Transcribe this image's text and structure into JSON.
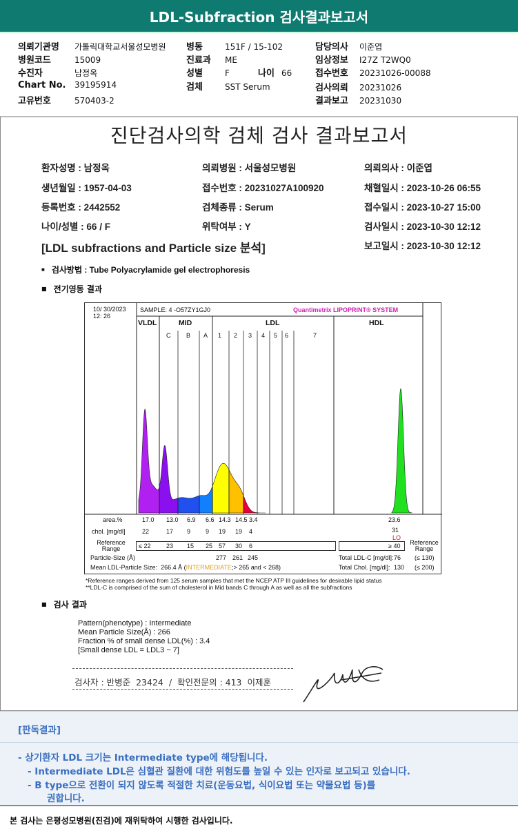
{
  "header": {
    "title": "LDL-Subfraction 검사결과보고서"
  },
  "info": {
    "col1": [
      {
        "label": "의뢰기관명",
        "value": "가톨릭대학교서울성모병원"
      },
      {
        "label": "병원코드",
        "value": "15009"
      },
      {
        "label": "수진자",
        "value": "남정옥"
      },
      {
        "label": "Chart No.",
        "value": "39195914"
      },
      {
        "label": "고유번호",
        "value": "570403-2"
      }
    ],
    "col2": [
      {
        "label": "병동",
        "value": "151F / 15-102"
      },
      {
        "label": "진료과",
        "value": "ME"
      },
      {
        "label": "성별",
        "value": "F"
      },
      {
        "label": "검체",
        "value": "SST Serum"
      }
    ],
    "age_label": "나이",
    "age_value": "66",
    "col3": [
      {
        "label": "담당의사",
        "value": "이준엽"
      },
      {
        "label": "임상정보",
        "value": "I27Z T2WQ0"
      },
      {
        "label": "접수번호",
        "value": "20231026-00088"
      },
      {
        "label": "검사의뢰",
        "value": "20231026"
      },
      {
        "label": "결과보고",
        "value": "20231030"
      }
    ]
  },
  "report": {
    "title": "진단검사의학 검체 검사 결과보고서",
    "rows": [
      [
        "환자성명 : 남정옥",
        "의뢰병원 : 서울성모병원",
        "의뢰의사 : 이준엽"
      ],
      [
        "생년월일 : 1957-04-03",
        "접수번호 : 20231027A100920",
        "채혈일시 : 2023-10-26 06:55"
      ],
      [
        "등록번호 : 2442552",
        "검체종류 : Serum",
        "접수일시 : 2023-10-27 15:00"
      ],
      [
        "나이/성별 : 66 / F",
        "위탁여부 : Y",
        "검사일시 : 2023-10-30 12:12"
      ]
    ],
    "report_date": "보고일시 : 2023-10-30 12:12",
    "section_title": "[LDL subfractions and Particle size 분석]",
    "method": "검사방법 : Tube Polyacrylamide gel electrophoresis",
    "electro_title": "전기영동 결과",
    "result_title": "검사 결과",
    "results": [
      "Pattern(phenotype) : Intermediate",
      "Mean Particle Size(Å) : 266",
      "Fraction % of small dense LDL(%) : 3.4",
      "[Small dense LDL = LDL3 ~ 7]"
    ],
    "signature_line": "검사자 : 반병준  23424  /  확인전문의 : 413  이제훈"
  },
  "chart": {
    "date": "10/ 30/2023",
    "time": "12: 26",
    "sample": "SAMPLE:   4 -O57ZY1GJ0",
    "brand": "Quantimetrix LIPOPRINT® SYSTEM",
    "groups": [
      "VLDL",
      "MID",
      "LDL",
      "HDL"
    ],
    "bands": [
      "C",
      "B",
      "A",
      "1",
      "2",
      "3",
      "4",
      "5",
      "6",
      "7"
    ],
    "area_label": "area.%",
    "area": [
      "17.0",
      "13.0",
      "6.9",
      "6.6",
      "14.3",
      "14.5",
      "3.4"
    ],
    "area_hdl": "23.6",
    "chol_label": "chol. [mg/dl]",
    "chol": [
      "22",
      "17",
      "9",
      "9",
      "19",
      "19",
      "4"
    ],
    "chol_hdl": "31",
    "hdl_flag": "LO",
    "ref_label": "Reference Range",
    "ref": [
      "≤ 22",
      "23",
      "15",
      "25",
      "57",
      "30",
      "6"
    ],
    "ref_hdl": "≥ 40",
    "ps_label": "Particle-Size (Å)",
    "ps": [
      "277",
      "261",
      "245"
    ],
    "mean_label": "Mean LDL-Particle Size:",
    "mean_value": "266.4 Å",
    "mean_class": "INTERMEDIATE",
    "mean_range": "> 265 and < 268)",
    "total_ldl_label": "Total LDL-C [mg/dl]:",
    "total_ldl": "76",
    "total_ldl_ref": "(≤ 130)",
    "total_chol_label": "Total Chol. [mg/dl]:",
    "total_chol": "130",
    "total_chol_ref": "(≤ 200)",
    "note1": "*Reference ranges derived from 125 serum samples that met the NCEP ATP III guidelines for desirable lipid status",
    "note2": "**LDL-C is comprised of the sum of cholesterol in Mid bands C through A as well as all the subfractions",
    "colors": {
      "vldl": "#b020f0",
      "c": "#8a10f0",
      "b": "#2050f0",
      "a": "#1080ff",
      "l1": "#ffff00",
      "l2": "#ffc000",
      "l3": "#e8003a",
      "hdl": "#20e020"
    }
  },
  "reading": {
    "title": "[판독결과]",
    "lines": [
      "-  상기환자 LDL 크기는 Intermediate type에 해당됩니다.",
      "-  Intermediate LDL은 심혈관 질환에 대한 위험도를 높일 수 있는 인자로 보고되고 있습니다.",
      "-  B type으로 전환이 되지 않도록 적절한 치료(운동요법, 식이요법 또는 약물요법 등)를",
      "권합니다."
    ]
  },
  "footer": {
    "text": "본 검사는 은평성모병원(진검)에 재위탁하여 시행한 검사입니다."
  }
}
